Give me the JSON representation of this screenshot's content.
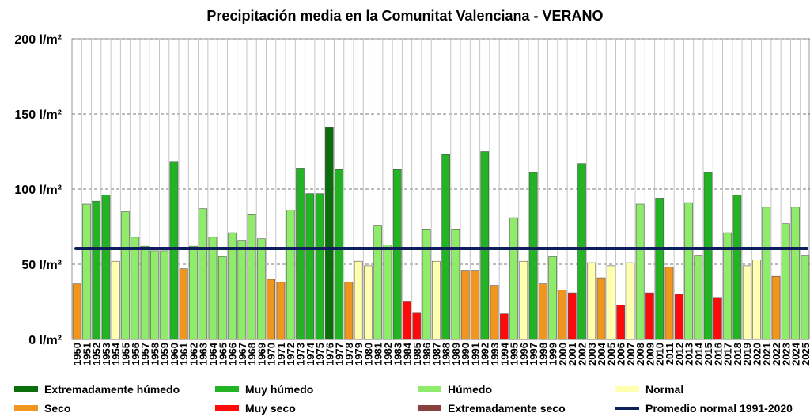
{
  "chart_data": {
    "type": "bar",
    "title": "Precipitación media en la Comunitat Valenciana - VERANO",
    "ylim": [
      0,
      200
    ],
    "yticks": [
      0,
      50,
      100,
      150,
      200
    ],
    "ytick_labels": [
      "0 l/m²",
      "50 l/m²",
      "100 l/m²",
      "150 l/m²",
      "200 l/m²"
    ],
    "grid": true,
    "categories": [
      "1950",
      "1951",
      "1952",
      "1953",
      "1954",
      "1955",
      "1956",
      "1957",
      "1958",
      "1959",
      "1960",
      "1961",
      "1962",
      "1963",
      "1964",
      "1965",
      "1966",
      "1967",
      "1968",
      "1969",
      "1970",
      "1971",
      "1972",
      "1973",
      "1974",
      "1975",
      "1976",
      "1977",
      "1978",
      "1979",
      "1980",
      "1981",
      "1982",
      "1983",
      "1984",
      "1985",
      "1986",
      "1987",
      "1988",
      "1989",
      "1990",
      "1991",
      "1992",
      "1993",
      "1994",
      "1995",
      "1996",
      "1997",
      "1998",
      "1999",
      "2000",
      "2001",
      "2002",
      "2003",
      "2004",
      "2005",
      "2006",
      "2007",
      "2008",
      "2009",
      "2010",
      "2011",
      "2012",
      "2013",
      "2014",
      "2015",
      "2016",
      "2017",
      "2018",
      "2019",
      "2020",
      "2021",
      "2022",
      "2023",
      "2024",
      "2025"
    ],
    "values": [
      37,
      90,
      92,
      96,
      52,
      85,
      68,
      62,
      59,
      59,
      118,
      47,
      62,
      87,
      68,
      55,
      71,
      66,
      83,
      67,
      40,
      38,
      86,
      114,
      97,
      97,
      141,
      113,
      38,
      52,
      49,
      76,
      63,
      113,
      25,
      18,
      73,
      52,
      123,
      73,
      46,
      46,
      125,
      36,
      17,
      81,
      52,
      111,
      37,
      55,
      33,
      31,
      117,
      51,
      41,
      49,
      23,
      51,
      90,
      31,
      94,
      48,
      30,
      91,
      56,
      111,
      28,
      71,
      96,
      49,
      53,
      88,
      42,
      77,
      88,
      56
    ],
    "categories_class": [
      "seco",
      "humedo",
      "muy_humedo",
      "muy_humedo",
      "normal",
      "humedo",
      "humedo",
      "humedo",
      "humedo",
      "humedo",
      "muy_humedo",
      "seco",
      "humedo",
      "humedo",
      "humedo",
      "humedo",
      "humedo",
      "humedo",
      "humedo",
      "humedo",
      "seco",
      "seco",
      "humedo",
      "muy_humedo",
      "muy_humedo",
      "muy_humedo",
      "extremadamente_humedo",
      "muy_humedo",
      "seco",
      "normal",
      "normal",
      "humedo",
      "humedo",
      "muy_humedo",
      "muy_seco",
      "muy_seco",
      "humedo",
      "normal",
      "muy_humedo",
      "humedo",
      "seco",
      "seco",
      "muy_humedo",
      "seco",
      "muy_seco",
      "humedo",
      "normal",
      "muy_humedo",
      "seco",
      "humedo",
      "seco",
      "muy_seco",
      "muy_humedo",
      "normal",
      "seco",
      "normal",
      "muy_seco",
      "normal",
      "humedo",
      "muy_seco",
      "muy_humedo",
      "seco",
      "muy_seco",
      "humedo",
      "humedo",
      "muy_humedo",
      "muy_seco",
      "humedo",
      "muy_humedo",
      "normal",
      "normal",
      "humedo",
      "seco",
      "humedo",
      "humedo",
      "humedo"
    ],
    "class_colors": {
      "extremadamente_humedo": "#0a6e0a",
      "muy_humedo": "#22b422",
      "humedo": "#8fec6a",
      "normal": "#ffffb0",
      "seco": "#f0961e",
      "muy_seco": "#ff0a0a",
      "extremadamente_seco": "#8b4040"
    },
    "reference_line": {
      "name": "Promedio normal 1991-2020",
      "value": 60.5,
      "color": "#0c1f5c"
    },
    "legend": [
      {
        "key": "extremadamente_humedo",
        "label": "Extremadamente húmedo"
      },
      {
        "key": "muy_humedo",
        "label": "Muy húmedo"
      },
      {
        "key": "humedo",
        "label": "Húmedo"
      },
      {
        "key": "normal",
        "label": "Normal"
      },
      {
        "key": "seco",
        "label": "Seco"
      },
      {
        "key": "muy_seco",
        "label": "Muy seco"
      },
      {
        "key": "extremadamente_seco",
        "label": "Extremadamente seco"
      },
      {
        "key": "reference_line",
        "label": "Promedio normal 1991-2020"
      }
    ],
    "legend_placement": "bottom"
  }
}
